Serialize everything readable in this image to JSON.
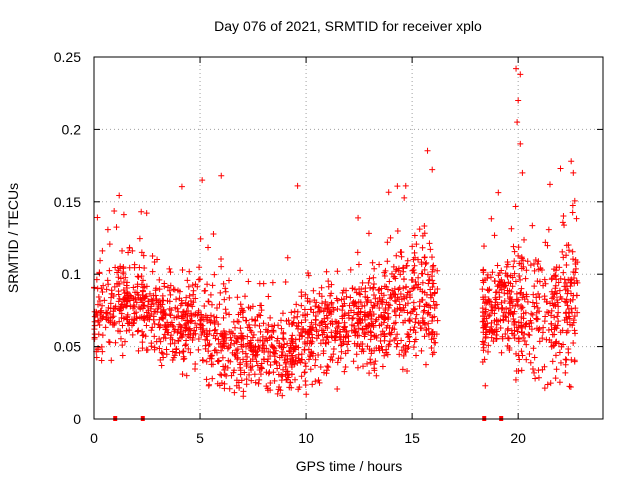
{
  "chart_data": {
    "type": "scatter",
    "title": "Day 076 of 2021, SRMTID for receiver xplo",
    "xlabel": "GPS time / hours",
    "ylabel": "SRMTID / TECUs",
    "xlim": [
      0,
      24
    ],
    "ylim": [
      0,
      0.25
    ],
    "x_ticks": [
      0,
      5,
      10,
      15,
      20
    ],
    "x_tick_labels": [
      "0",
      "5",
      "10",
      "15",
      "20"
    ],
    "y_ticks": [
      0,
      0.05,
      0.1,
      0.15,
      0.2,
      0.25
    ],
    "y_tick_labels": [
      "0",
      "0.05",
      "0.1",
      "0.15",
      "0.2",
      "0.25"
    ],
    "grid": true,
    "marker": "+",
    "color": "#ff0000",
    "series": [
      {
        "name": "SRMTID",
        "x_range": [
          0,
          22.8
        ],
        "data_gap_hours": [
          16.2,
          18.3
        ],
        "baseline_profile": [
          {
            "x": 0.0,
            "y": 0.075
          },
          {
            "x": 1.5,
            "y": 0.085
          },
          {
            "x": 3.0,
            "y": 0.07
          },
          {
            "x": 5.0,
            "y": 0.065
          },
          {
            "x": 6.5,
            "y": 0.05
          },
          {
            "x": 8.0,
            "y": 0.05
          },
          {
            "x": 9.5,
            "y": 0.045
          },
          {
            "x": 10.5,
            "y": 0.06
          },
          {
            "x": 12.0,
            "y": 0.065
          },
          {
            "x": 13.5,
            "y": 0.07
          },
          {
            "x": 15.0,
            "y": 0.08
          },
          {
            "x": 16.2,
            "y": 0.08
          },
          {
            "x": 18.3,
            "y": 0.075
          },
          {
            "x": 19.5,
            "y": 0.08
          },
          {
            "x": 20.5,
            "y": 0.07
          },
          {
            "x": 21.5,
            "y": 0.07
          },
          {
            "x": 22.8,
            "y": 0.08
          }
        ],
        "notable_points": [
          {
            "x": 5.1,
            "y": 0.165
          },
          {
            "x": 6.0,
            "y": 0.168
          },
          {
            "x": 9.6,
            "y": 0.161
          },
          {
            "x": 14.7,
            "y": 0.161
          },
          {
            "x": 18.45,
            "y": 0.023
          },
          {
            "x": 19.9,
            "y": 0.242
          },
          {
            "x": 20.1,
            "y": 0.238
          },
          {
            "x": 20.0,
            "y": 0.22
          },
          {
            "x": 19.95,
            "y": 0.205
          },
          {
            "x": 20.1,
            "y": 0.19
          },
          {
            "x": 20.2,
            "y": 0.17
          },
          {
            "x": 22.5,
            "y": 0.178
          },
          {
            "x": 22.6,
            "y": 0.17
          },
          {
            "x": 21.5,
            "y": 0.162
          },
          {
            "x": 20.8,
            "y": 0.028
          }
        ]
      }
    ],
    "zero_markers_x": [
      1.0,
      2.3,
      18.4,
      19.2
    ]
  }
}
